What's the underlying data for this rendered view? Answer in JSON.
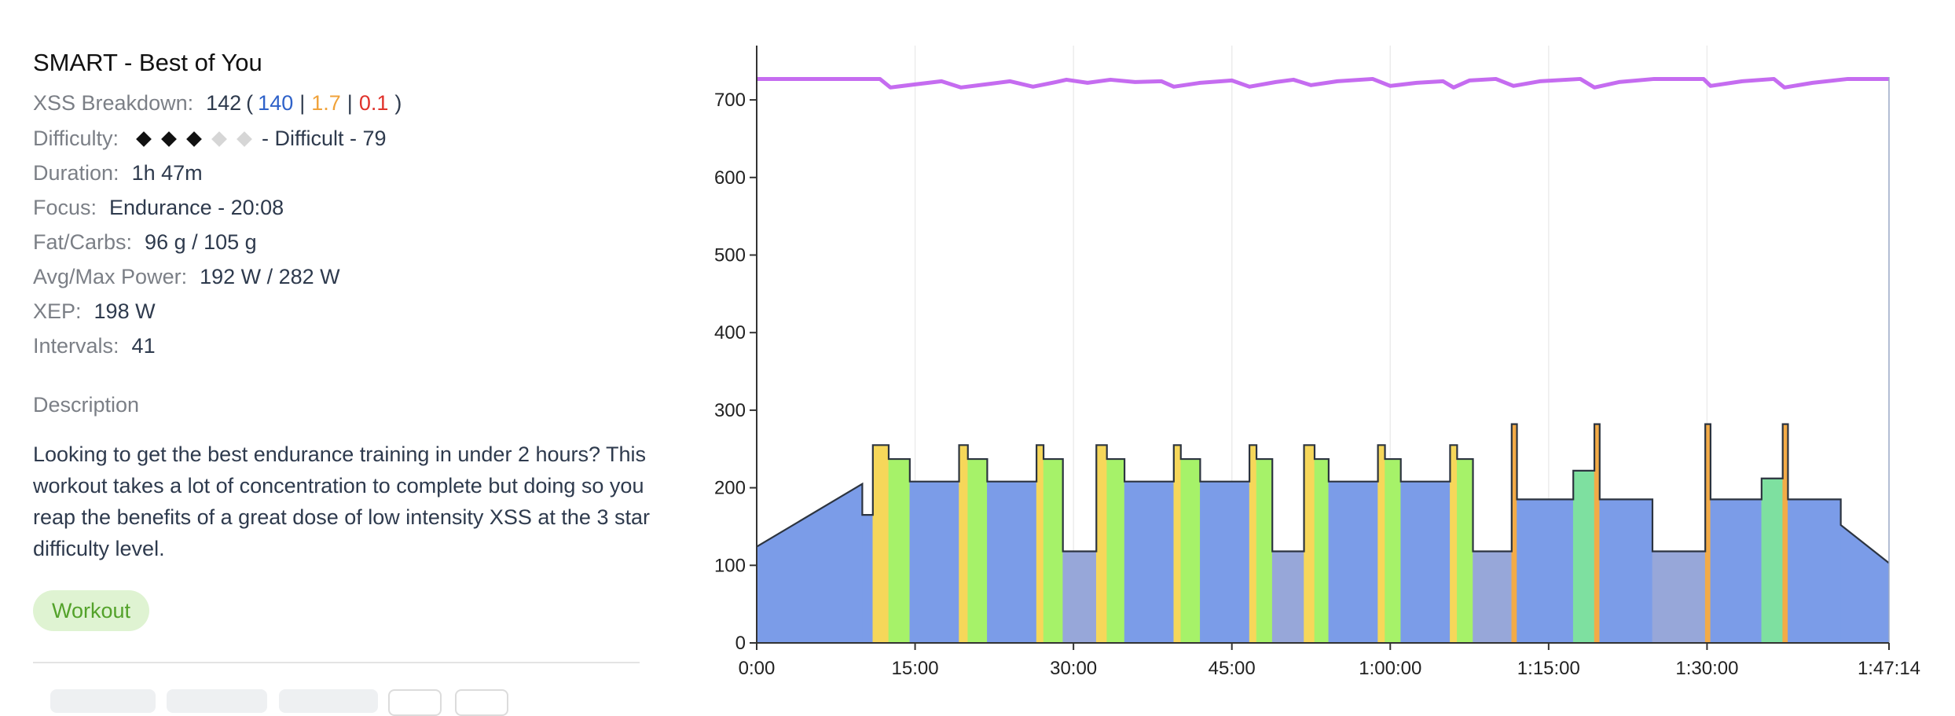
{
  "workout": {
    "title": "SMART - Best of You",
    "xss": {
      "label": "XSS Breakdown:",
      "total": "142",
      "open": "(",
      "blue": "140",
      "sep1": "|",
      "orange": "1.7",
      "sep2": "|",
      "red": "0.1",
      "close": ")"
    },
    "difficulty": {
      "label": "Difficulty:",
      "filled": 3,
      "empty": 2,
      "text": "- Difficult - 79"
    },
    "duration": {
      "label": "Duration:",
      "value": "1h 47m"
    },
    "focus": {
      "label": "Focus:",
      "value": "Endurance - 20:08"
    },
    "fat_carbs": {
      "label": "Fat/Carbs:",
      "value": "96 g / 105 g"
    },
    "power": {
      "label": "Avg/Max Power:",
      "value": "192 W / 282 W"
    },
    "xep": {
      "label": "XEP:",
      "value": "198 W"
    },
    "intervals": {
      "label": "Intervals:",
      "value": "41"
    },
    "description_heading": "Description",
    "description": "Looking to get the best endurance training in under 2 hours? This workout takes a lot of concentration to complete but doing so you reap the benefits of a great dose of low intensity XSS at the 3 star difficulty level.",
    "tag": "Workout"
  },
  "colors": {
    "endurance": "#7b9ce8",
    "recovery": "#97a7d9",
    "tempo": "#a6f269",
    "threshold": "#f6d75a",
    "vo2": "#f3ab47",
    "sweetspot": "#7ee0a0",
    "ramp": "#7b9ce8",
    "line": "#c56cf0",
    "outline": "#2c3440"
  },
  "chart_data": {
    "type": "area",
    "x_unit": "seconds",
    "xlim": [
      0,
      6434
    ],
    "ylim": [
      0,
      770
    ],
    "x_tick_values": [
      0,
      900,
      1800,
      2700,
      3600,
      4500,
      5400,
      6434
    ],
    "x_tick_labels": [
      "0:00",
      "15:00",
      "30:00",
      "45:00",
      "1:00:00",
      "1:15:00",
      "1:30:00",
      "1:47:14"
    ],
    "y_ticks": [
      0,
      100,
      200,
      300,
      400,
      500,
      600,
      700
    ],
    "grid": "vertical at x ticks",
    "power_profile": [
      {
        "start": 0,
        "end": 600,
        "from": 124,
        "to": 205,
        "zone": "ramp"
      },
      {
        "start": 600,
        "end": 660,
        "from": 165,
        "to": 165,
        "zone": "endurance"
      },
      {
        "start": 660,
        "end": 750,
        "from": 255,
        "to": 255,
        "zone": "threshold"
      },
      {
        "start": 750,
        "end": 870,
        "from": 237,
        "to": 237,
        "zone": "tempo"
      },
      {
        "start": 870,
        "end": 1150,
        "from": 208,
        "to": 208,
        "zone": "endurance"
      },
      {
        "start": 1150,
        "end": 1200,
        "from": 255,
        "to": 255,
        "zone": "threshold"
      },
      {
        "start": 1200,
        "end": 1310,
        "from": 237,
        "to": 237,
        "zone": "tempo"
      },
      {
        "start": 1310,
        "end": 1590,
        "from": 208,
        "to": 208,
        "zone": "endurance"
      },
      {
        "start": 1590,
        "end": 1630,
        "from": 255,
        "to": 255,
        "zone": "threshold"
      },
      {
        "start": 1630,
        "end": 1740,
        "from": 237,
        "to": 237,
        "zone": "tempo"
      },
      {
        "start": 1740,
        "end": 1930,
        "from": 118,
        "to": 118,
        "zone": "recovery"
      },
      {
        "start": 1930,
        "end": 1990,
        "from": 255,
        "to": 255,
        "zone": "threshold"
      },
      {
        "start": 1990,
        "end": 2090,
        "from": 237,
        "to": 237,
        "zone": "tempo"
      },
      {
        "start": 2090,
        "end": 2370,
        "from": 208,
        "to": 208,
        "zone": "endurance"
      },
      {
        "start": 2370,
        "end": 2410,
        "from": 255,
        "to": 255,
        "zone": "threshold"
      },
      {
        "start": 2410,
        "end": 2520,
        "from": 237,
        "to": 237,
        "zone": "tempo"
      },
      {
        "start": 2520,
        "end": 2800,
        "from": 208,
        "to": 208,
        "zone": "endurance"
      },
      {
        "start": 2800,
        "end": 2840,
        "from": 255,
        "to": 255,
        "zone": "threshold"
      },
      {
        "start": 2840,
        "end": 2930,
        "from": 237,
        "to": 237,
        "zone": "tempo"
      },
      {
        "start": 2930,
        "end": 3110,
        "from": 118,
        "to": 118,
        "zone": "recovery"
      },
      {
        "start": 3110,
        "end": 3170,
        "from": 255,
        "to": 255,
        "zone": "threshold"
      },
      {
        "start": 3170,
        "end": 3250,
        "from": 237,
        "to": 237,
        "zone": "tempo"
      },
      {
        "start": 3250,
        "end": 3530,
        "from": 208,
        "to": 208,
        "zone": "endurance"
      },
      {
        "start": 3530,
        "end": 3570,
        "from": 255,
        "to": 255,
        "zone": "threshold"
      },
      {
        "start": 3570,
        "end": 3660,
        "from": 237,
        "to": 237,
        "zone": "tempo"
      },
      {
        "start": 3660,
        "end": 3940,
        "from": 208,
        "to": 208,
        "zone": "endurance"
      },
      {
        "start": 3940,
        "end": 3980,
        "from": 255,
        "to": 255,
        "zone": "threshold"
      },
      {
        "start": 3980,
        "end": 4070,
        "from": 237,
        "to": 237,
        "zone": "tempo"
      },
      {
        "start": 4070,
        "end": 4290,
        "from": 118,
        "to": 118,
        "zone": "recovery"
      },
      {
        "start": 4290,
        "end": 4320,
        "from": 282,
        "to": 282,
        "zone": "vo2"
      },
      {
        "start": 4320,
        "end": 4640,
        "from": 185,
        "to": 185,
        "zone": "endurance"
      },
      {
        "start": 4640,
        "end": 4760,
        "from": 222,
        "to": 222,
        "zone": "sweetspot"
      },
      {
        "start": 4760,
        "end": 4790,
        "from": 282,
        "to": 282,
        "zone": "vo2"
      },
      {
        "start": 4790,
        "end": 5090,
        "from": 185,
        "to": 185,
        "zone": "endurance"
      },
      {
        "start": 5090,
        "end": 5390,
        "from": 118,
        "to": 118,
        "zone": "recovery"
      },
      {
        "start": 5390,
        "end": 5420,
        "from": 282,
        "to": 282,
        "zone": "vo2"
      },
      {
        "start": 5420,
        "end": 5710,
        "from": 185,
        "to": 185,
        "zone": "endurance"
      },
      {
        "start": 5710,
        "end": 5830,
        "from": 212,
        "to": 212,
        "zone": "sweetspot"
      },
      {
        "start": 5830,
        "end": 5860,
        "from": 282,
        "to": 282,
        "zone": "vo2"
      },
      {
        "start": 5860,
        "end": 6160,
        "from": 185,
        "to": 185,
        "zone": "endurance"
      },
      {
        "start": 6160,
        "end": 6434,
        "from": 152,
        "to": 103,
        "zone": "ramp"
      }
    ],
    "upper_line": {
      "points": [
        [
          0,
          727
        ],
        [
          700,
          727
        ],
        [
          760,
          716
        ],
        [
          900,
          720
        ],
        [
          1050,
          724
        ],
        [
          1160,
          716
        ],
        [
          1300,
          720
        ],
        [
          1440,
          724
        ],
        [
          1570,
          717
        ],
        [
          1700,
          723
        ],
        [
          1760,
          726
        ],
        [
          1880,
          722
        ],
        [
          2010,
          726
        ],
        [
          2150,
          723
        ],
        [
          2300,
          724
        ],
        [
          2370,
          717
        ],
        [
          2520,
          722
        ],
        [
          2700,
          725
        ],
        [
          2800,
          717
        ],
        [
          2950,
          723
        ],
        [
          3050,
          726
        ],
        [
          3150,
          719
        ],
        [
          3300,
          724
        ],
        [
          3500,
          727
        ],
        [
          3600,
          718
        ],
        [
          3750,
          722
        ],
        [
          3900,
          724
        ],
        [
          3960,
          716
        ],
        [
          4050,
          725
        ],
        [
          4200,
          727
        ],
        [
          4300,
          718
        ],
        [
          4450,
          724
        ],
        [
          4680,
          727
        ],
        [
          4760,
          716
        ],
        [
          4900,
          723
        ],
        [
          5100,
          727
        ],
        [
          5380,
          727
        ],
        [
          5420,
          718
        ],
        [
          5600,
          724
        ],
        [
          5780,
          727
        ],
        [
          5840,
          716
        ],
        [
          6000,
          722
        ],
        [
          6200,
          727
        ],
        [
          6434,
          727
        ]
      ]
    }
  }
}
